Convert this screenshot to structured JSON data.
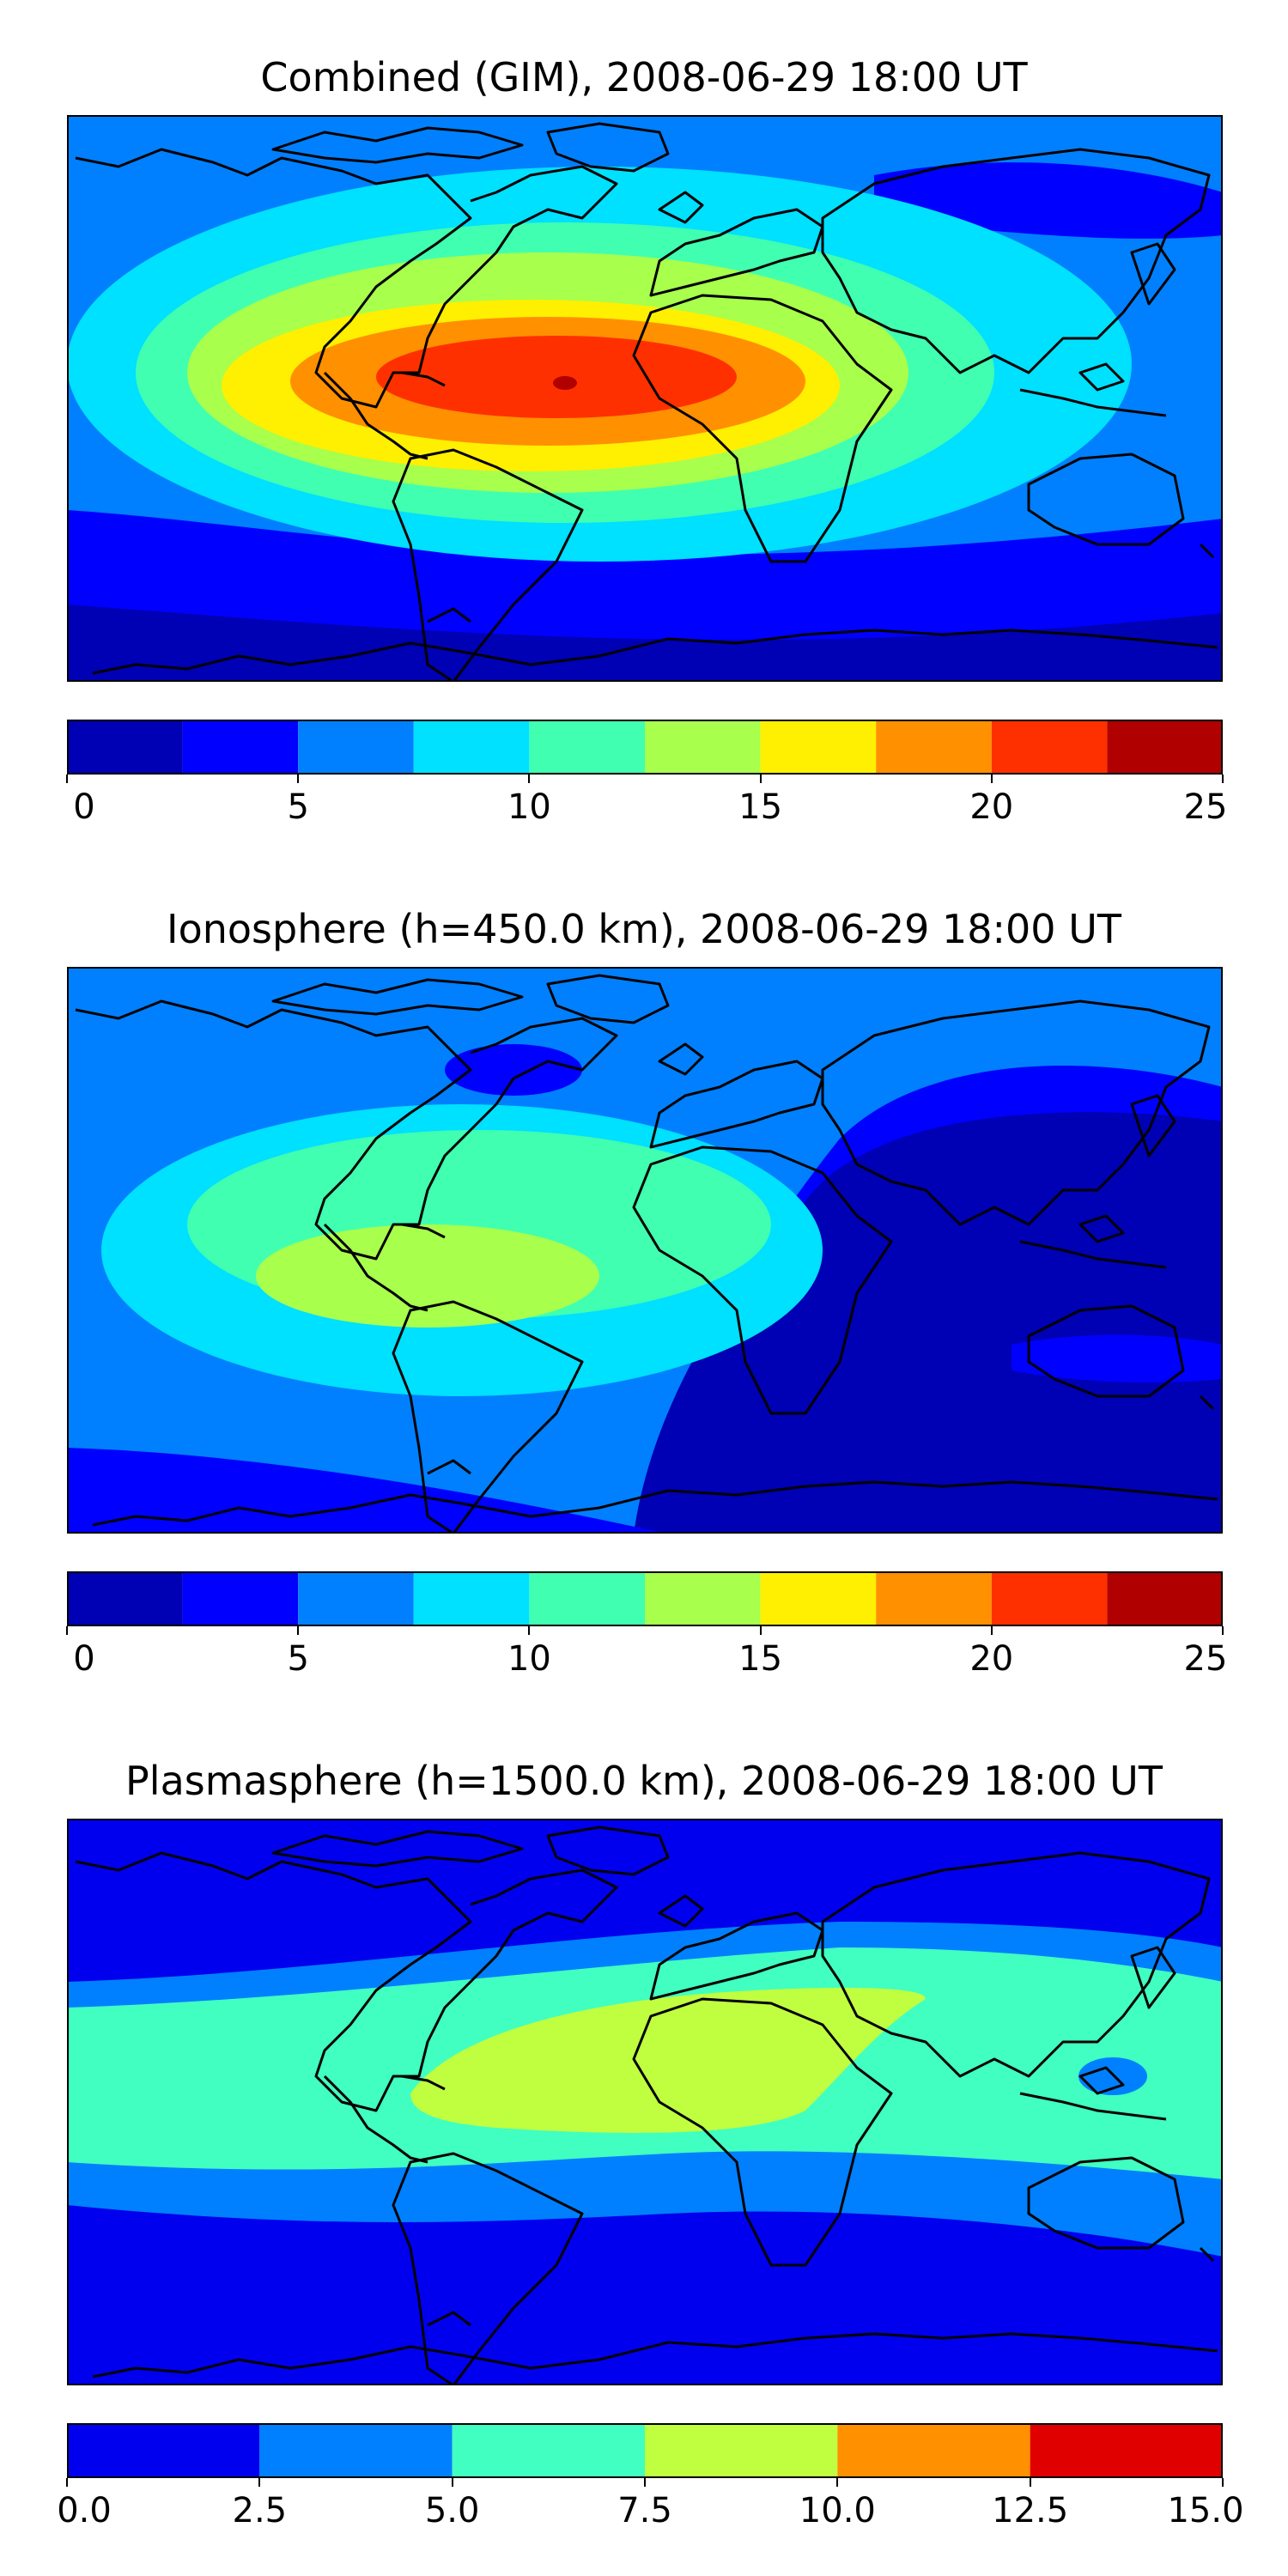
{
  "panels": [
    {
      "title": "Combined (GIM), 2008-06-29 18:00 UT",
      "colorbar": {
        "ticks": [
          "0",
          "5",
          "10",
          "15",
          "20",
          "25"
        ],
        "range": [
          0,
          25
        ],
        "levels": [
          0,
          2.5,
          5,
          7.5,
          10,
          12.5,
          15,
          17.5,
          20,
          22.5,
          25
        ],
        "colors": [
          "#0000b4",
          "#0000ff",
          "#0080ff",
          "#00e0ff",
          "#40ffb0",
          "#a8ff4c",
          "#ffef00",
          "#ff9000",
          "#ff3000",
          "#b00000"
        ]
      }
    },
    {
      "title": "Ionosphere  (h=450.0 km), 2008-06-29 18:00 UT",
      "colorbar": {
        "ticks": [
          "0",
          "5",
          "10",
          "15",
          "20",
          "25"
        ],
        "range": [
          0,
          25
        ],
        "levels": [
          0,
          2.5,
          5,
          7.5,
          10,
          12.5,
          15,
          17.5,
          20,
          22.5,
          25
        ],
        "colors": [
          "#0000b4",
          "#0000ff",
          "#0080ff",
          "#00e0ff",
          "#40ffb0",
          "#a8ff4c",
          "#ffef00",
          "#ff9000",
          "#ff3000",
          "#b00000"
        ]
      }
    },
    {
      "title": "Plasmasphere (h=1500.0 km), 2008-06-29 18:00 UT",
      "colorbar": {
        "ticks": [
          "0.0",
          "2.5",
          "5.0",
          "7.5",
          "10.0",
          "12.5",
          "15.0"
        ],
        "range": [
          0,
          15
        ],
        "levels": [
          0,
          2.5,
          5,
          7.5,
          10,
          12.5,
          15
        ],
        "colors": [
          "#0000ee",
          "#0080ff",
          "#40ffc0",
          "#c0ff40",
          "#ff9000",
          "#e00000"
        ]
      }
    }
  ]
}
